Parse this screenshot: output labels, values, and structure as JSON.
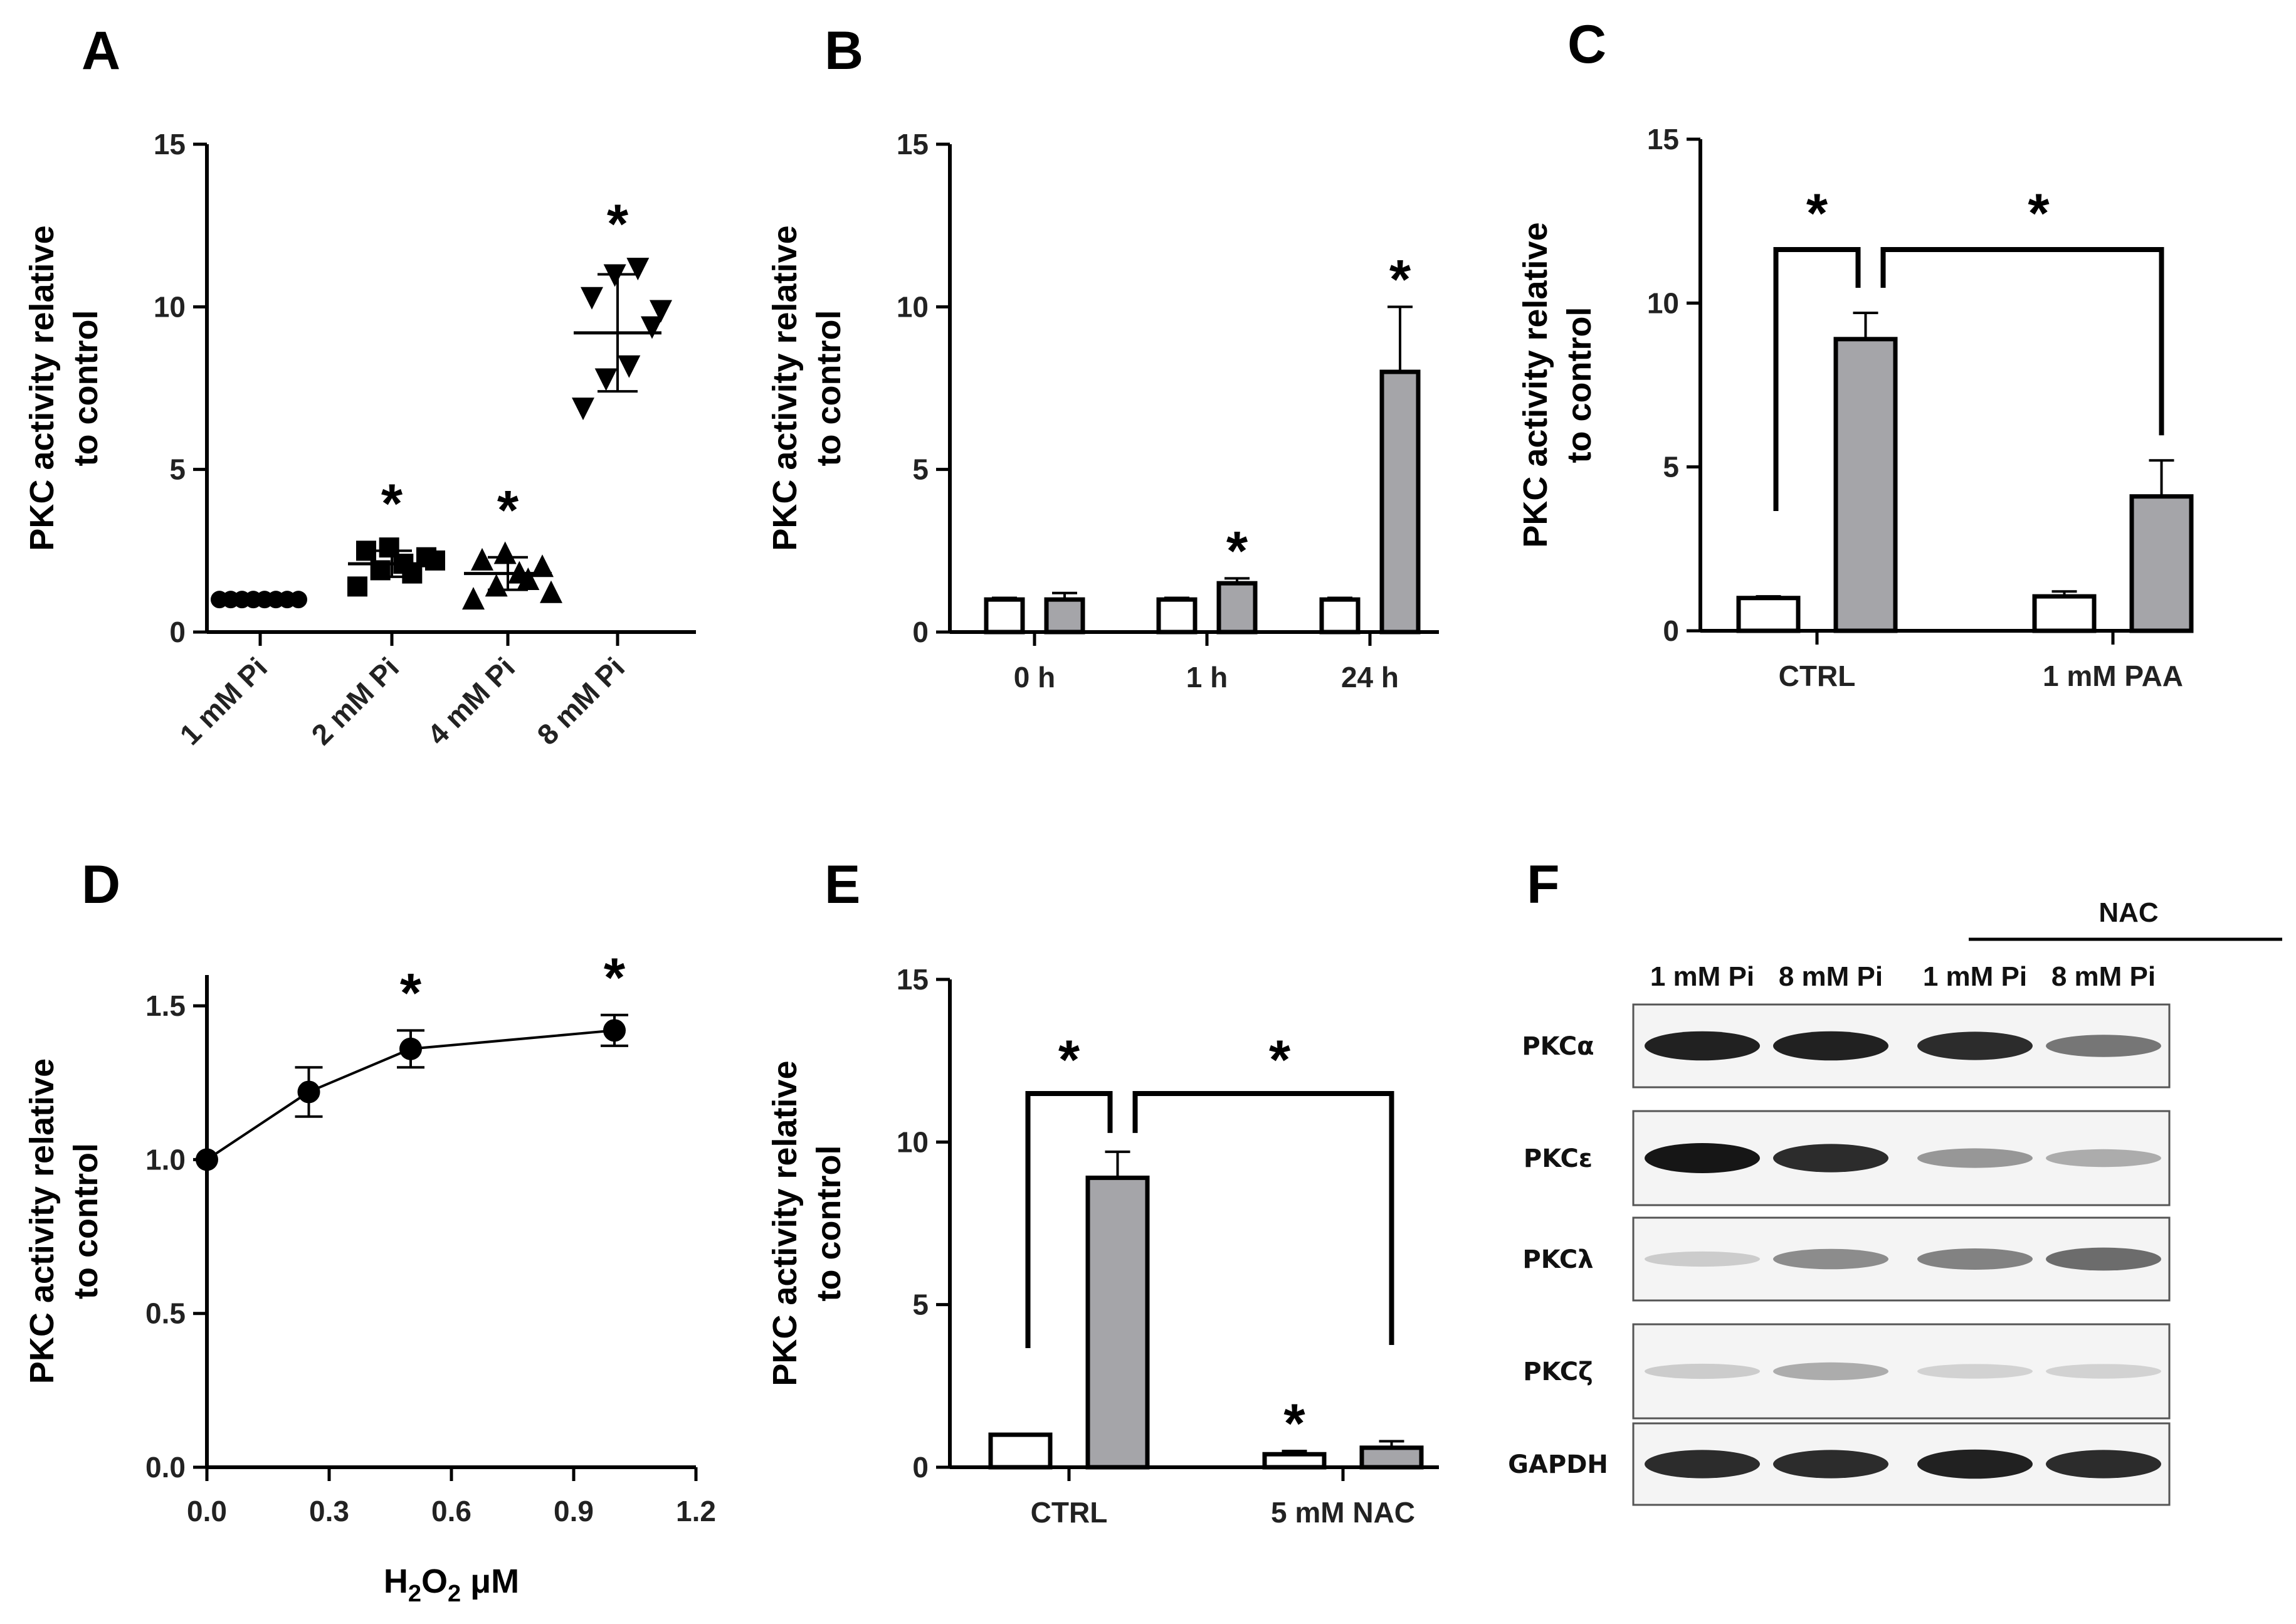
{
  "panels": {
    "A": "A",
    "B": "B",
    "C": "C",
    "D": "D",
    "E": "E",
    "F": "F"
  },
  "chart_data": [
    {
      "panel": "A",
      "type": "scatter",
      "ylabel_line1": "PKC activity relative",
      "ylabel_line2": "to control",
      "ylim": [
        0,
        15
      ],
      "yticks": [
        "0",
        "5",
        "10",
        "15"
      ],
      "categories": [
        "1 mM Pi",
        "2 mM Pi",
        "4 mM Pi",
        "8 mM Pi"
      ],
      "markers": [
        "circle",
        "square",
        "triangle-up",
        "triangle-down"
      ],
      "points": [
        [
          1,
          1,
          1,
          1,
          1,
          1,
          1,
          1
        ],
        [
          1.4,
          1.9,
          2.1,
          2.3,
          2.5,
          2.6,
          1.8,
          2.2
        ],
        [
          1.0,
          1.4,
          1.8,
          2.0,
          2.2,
          2.4,
          1.6,
          1.2
        ],
        [
          6.9,
          7.8,
          8.2,
          9.4,
          10.3,
          11.0,
          11.2,
          9.9
        ]
      ],
      "means": [
        1.0,
        2.1,
        1.8,
        9.2
      ],
      "sd": [
        0.0,
        0.4,
        0.5,
        1.8
      ],
      "significance": [
        "",
        "*",
        "*",
        "*"
      ]
    },
    {
      "panel": "B",
      "type": "bar",
      "ylabel_line1": "PKC activity relative",
      "ylabel_line2": "to control",
      "ylim": [
        0,
        15
      ],
      "yticks": [
        "0",
        "5",
        "10",
        "15"
      ],
      "categories": [
        "0 h",
        "1 h",
        "24 h"
      ],
      "series": [
        {
          "fill": "#ffffff",
          "values": [
            1.0,
            1.0,
            1.0
          ],
          "err": [
            0.05,
            0.05,
            0.05
          ]
        },
        {
          "fill": "#a5a5a9",
          "values": [
            1.0,
            1.5,
            8.0
          ],
          "err": [
            0.2,
            0.15,
            2.0
          ]
        }
      ],
      "significance": [
        {
          "category": 1,
          "series": 1,
          "label": "*"
        },
        {
          "category": 2,
          "series": 1,
          "label": "*"
        }
      ]
    },
    {
      "panel": "C",
      "type": "bar",
      "ylabel_line1": "PKC activity relative",
      "ylabel_line2": "to control",
      "ylim": [
        0,
        15
      ],
      "yticks": [
        "0",
        "5",
        "10",
        "15"
      ],
      "categories": [
        "CTRL",
        "1 mM PAA"
      ],
      "series": [
        {
          "fill": "#ffffff",
          "values": [
            1.0,
            1.05
          ],
          "err": [
            0.05,
            0.15
          ]
        },
        {
          "fill": "#a5a5a9",
          "values": [
            8.9,
            4.1
          ],
          "err": [
            0.8,
            1.1
          ]
        }
      ],
      "brackets": [
        {
          "from": [
            0,
            0
          ],
          "to": [
            0,
            1
          ],
          "label": "*"
        },
        {
          "from": [
            0,
            1
          ],
          "to": [
            1,
            1
          ],
          "label": "*"
        }
      ]
    },
    {
      "panel": "D",
      "type": "line",
      "ylabel_line1": "PKC activity relative",
      "ylabel_line2": "to control",
      "xlabel_main": "H",
      "xlabel_sub1": "2",
      "xlabel_mid": "O",
      "xlabel_sub2": "2",
      "xlabel_unit": " μM",
      "xlim": [
        0,
        1.2
      ],
      "ylim": [
        0,
        1.6
      ],
      "xticks": [
        "0.0",
        "0.3",
        "0.6",
        "0.9",
        "1.2"
      ],
      "yticks": [
        "0.0",
        "0.5",
        "1.0",
        "1.5"
      ],
      "x": [
        0,
        0.25,
        0.5,
        1.0
      ],
      "y": [
        1.0,
        1.22,
        1.36,
        1.42
      ],
      "err": [
        0.0,
        0.08,
        0.06,
        0.05
      ],
      "significance": [
        "",
        "",
        "*",
        "*"
      ]
    },
    {
      "panel": "E",
      "type": "bar",
      "ylabel_line1": "PKC activity relative",
      "ylabel_line2": "to control",
      "ylim": [
        0,
        15
      ],
      "yticks": [
        "0",
        "5",
        "10",
        "15"
      ],
      "categories": [
        "CTRL",
        "5 mM NAC"
      ],
      "series": [
        {
          "fill": "#ffffff",
          "values": [
            1.0,
            0.4
          ],
          "err": [
            0.0,
            0.1
          ]
        },
        {
          "fill": "#a5a5a9",
          "values": [
            8.9,
            0.6
          ],
          "err": [
            0.8,
            0.2
          ]
        }
      ],
      "significance": [
        {
          "category": 1,
          "series": 0,
          "label": "*"
        }
      ],
      "brackets": [
        {
          "from": [
            0,
            0
          ],
          "to": [
            0,
            1
          ],
          "label": "*"
        },
        {
          "from": [
            0,
            1
          ],
          "to": [
            1,
            1
          ],
          "label": "*"
        }
      ]
    }
  ],
  "western_blot": {
    "group_label": "NAC",
    "lanes": [
      "1 mM Pi",
      "8 mM Pi",
      "1 mM Pi",
      "8 mM Pi"
    ],
    "rows": [
      {
        "label": "PKCα",
        "intensity": [
          0.95,
          0.95,
          0.9,
          0.55
        ]
      },
      {
        "label": "PKCε",
        "intensity": [
          1.0,
          0.9,
          0.4,
          0.3
        ]
      },
      {
        "label": "PKCλ",
        "intensity": [
          0.15,
          0.45,
          0.5,
          0.6
        ]
      },
      {
        "label": "PKCζ",
        "intensity": [
          0.15,
          0.3,
          0.12,
          0.12
        ]
      },
      {
        "label": "GAPDH",
        "intensity": [
          0.9,
          0.9,
          0.95,
          0.9
        ]
      }
    ]
  }
}
